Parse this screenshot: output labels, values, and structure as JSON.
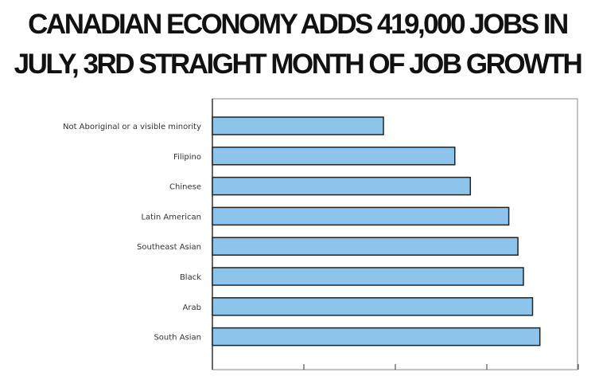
{
  "headline": {
    "line1": "CANADIAN ECONOMY ADDS 419,000 JOBS IN",
    "line2": "JULY, 3RD STRAIGHT MONTH OF JOB GROWTH"
  },
  "colors": {
    "bar_fill": "#8cc4ec",
    "bar_stroke": "#222222",
    "axis": "#333333",
    "plot_border": "#888888"
  },
  "chart_data": {
    "type": "bar",
    "orientation": "horizontal",
    "title": "",
    "xlabel": "",
    "ylabel": "",
    "categories": [
      "Not Aboriginal or a visible minority",
      "Filipino",
      "Chinese",
      "Latin American",
      "Southeast Asian",
      "Black",
      "Arab",
      "South Asian"
    ],
    "values": [
      18.7,
      26.5,
      28.2,
      32.4,
      33.4,
      34.0,
      35.0,
      35.8
    ],
    "xlim": [
      0,
      40
    ],
    "x_ticks": [
      0,
      10,
      20,
      30,
      40
    ],
    "tick_labels_shown": false,
    "grid": false,
    "legend": "none"
  }
}
